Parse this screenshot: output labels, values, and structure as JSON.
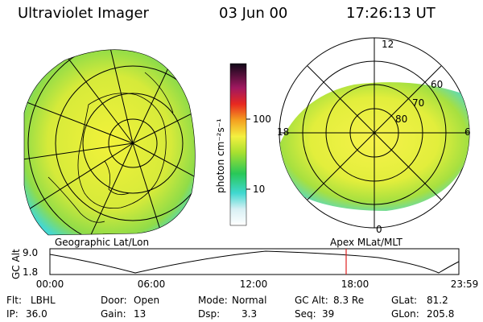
{
  "header": {
    "title": "Ultraviolet Imager",
    "date": "03 Jun 00",
    "time": "17:26:13 UT"
  },
  "colorbar": {
    "label": "photon cm⁻²s⁻¹",
    "ticks": [
      "100",
      "10"
    ]
  },
  "polar_labels": {
    "top": "12",
    "left": "18",
    "right": "6",
    "bottom": "0",
    "lat1": "60",
    "lat2": "70",
    "lat3": "80"
  },
  "left_panel_label": "Geographic Lat/Lon",
  "right_panel_label": "Apex MLat/MLT",
  "timeline": {
    "ylabel": "GC Alt",
    "y_top": "9.0",
    "y_bottom": "1.8",
    "times": [
      "00:00",
      "06:00",
      "12:00",
      "18:00",
      "23:59"
    ]
  },
  "info": {
    "row1": [
      {
        "label": "Flt:",
        "value": "LBHL"
      },
      {
        "label": "Door:",
        "value": "Open"
      },
      {
        "label": "Mode:",
        "value": "Normal"
      },
      {
        "label": "GC Alt:",
        "value": "8.3 Re"
      },
      {
        "label": "GLat:",
        "value": "81.2"
      }
    ],
    "row2": [
      {
        "label": "IP:",
        "value": "36.0"
      },
      {
        "label": "Gain:",
        "value": "13"
      },
      {
        "label": "Dsp:",
        "value": "3.3"
      },
      {
        "label": "Seq:",
        "value": "39"
      },
      {
        "label": "GLon:",
        "value": "205.8"
      }
    ]
  },
  "colors": {
    "aurora_bright": "#f2f23a",
    "aurora_mid": "#b4e23c",
    "aurora_low": "#46d8d0",
    "marker": "#e02020"
  }
}
